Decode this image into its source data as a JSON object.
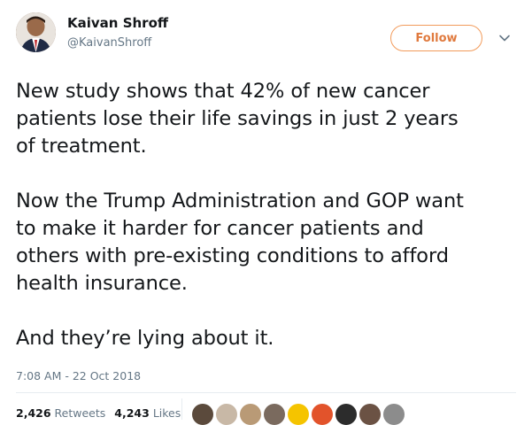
{
  "author": {
    "name": "Kaivan Shroff",
    "handle": "@KaivanShroff"
  },
  "follow_label": "Follow",
  "tweet": {
    "lines": [
      "New study shows that 42% of new cancer",
      "patients lose their life savings in just 2 years",
      "of treatment.",
      "",
      "Now the Trump Administration and GOP want",
      "to make it harder for cancer patients and",
      "others with pre-existing conditions to afford",
      "health insurance.",
      "",
      "And they’re lying about it."
    ]
  },
  "timestamp": "7:08 AM - 22 Oct 2018",
  "stats": {
    "retweets_count": "2,426",
    "retweets_label": "Retweets",
    "likes_count": "4,243",
    "likes_label": "Likes"
  },
  "liker_avatars": [
    {
      "color": "#5b4a3c"
    },
    {
      "color": "#c8b8a6"
    },
    {
      "color": "#b99a76"
    },
    {
      "color": "#7a6a5e"
    },
    {
      "color": "#f5c400"
    },
    {
      "color": "#e2532b"
    },
    {
      "color": "#2c2c2c"
    },
    {
      "color": "#6b5244"
    },
    {
      "color": "#8c8c8c"
    }
  ],
  "colors": {
    "follow_accent": "#e07a3e",
    "text_primary": "#14171a",
    "text_secondary": "#657786"
  }
}
